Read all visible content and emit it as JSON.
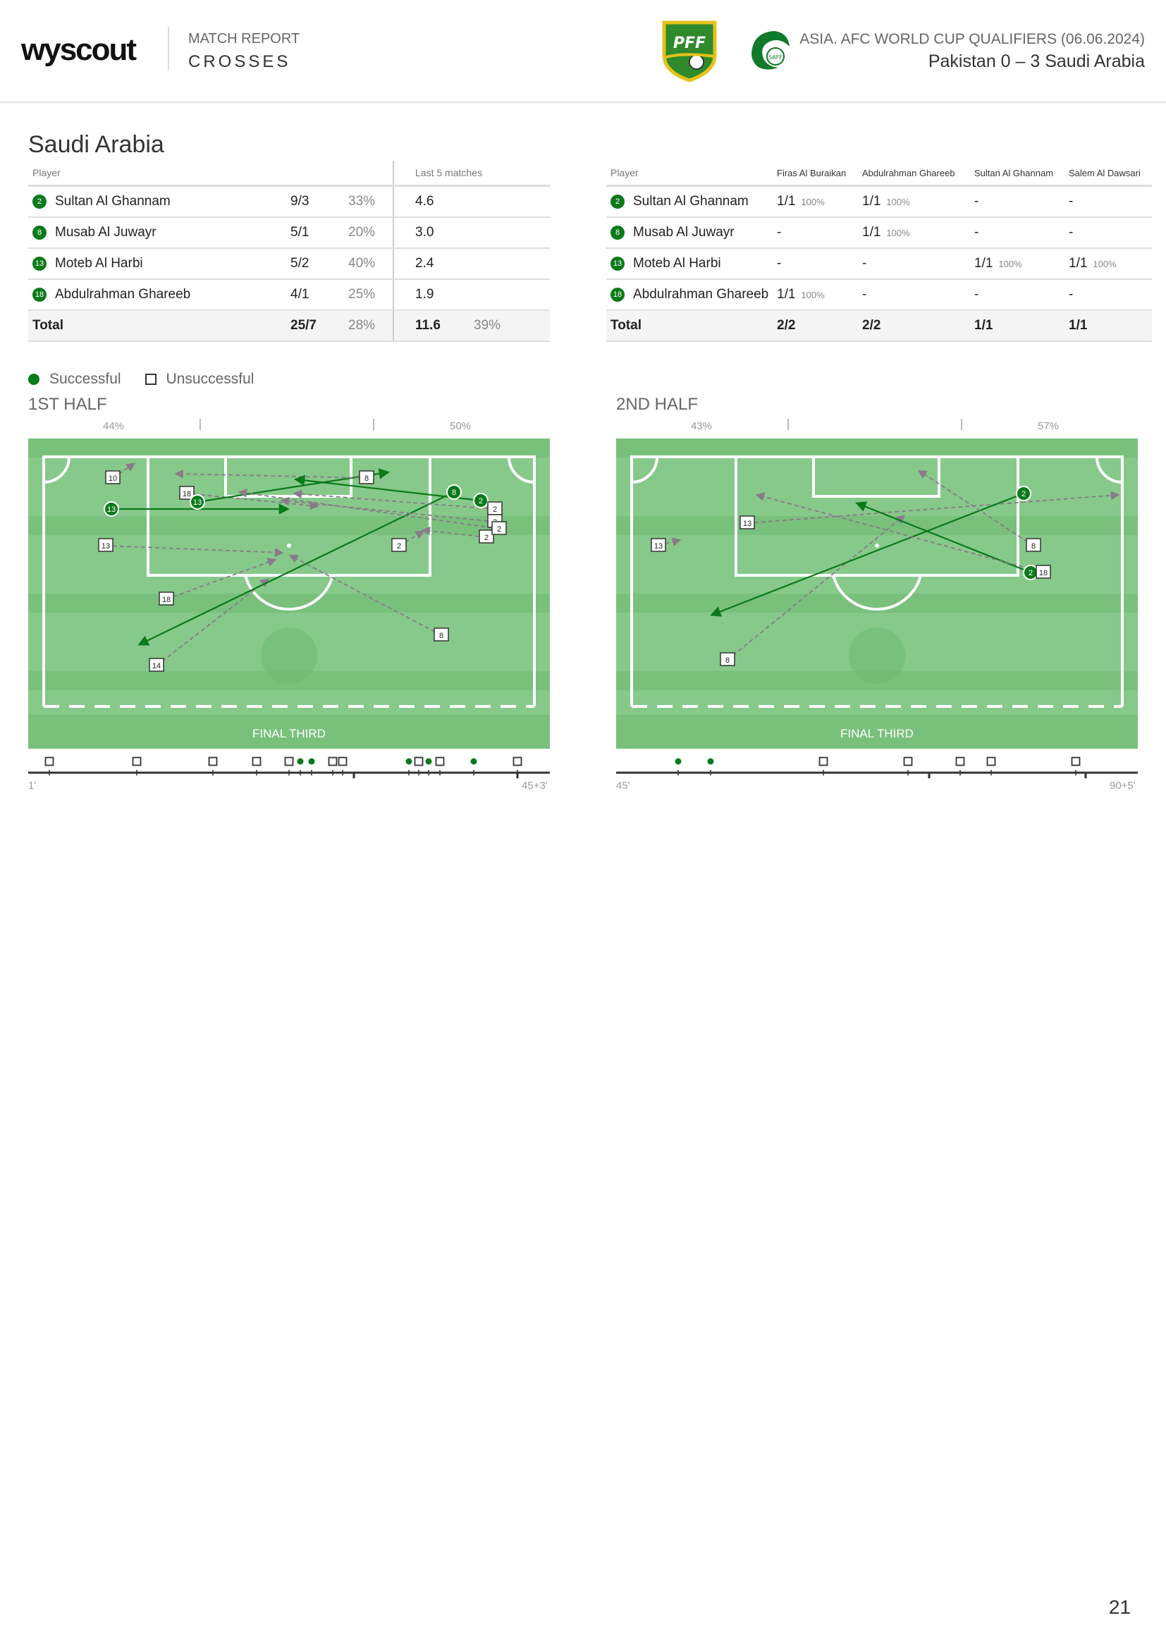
{
  "header": {
    "logo": "wyscout",
    "report_label": "MATCH REPORT",
    "report_title": "CROSSES",
    "competition": "ASIA. AFC WORLD CUP QUALIFIERS (06.06.2024)",
    "match": "Pakistan 0 – 3 Saudi Arabia",
    "home_crest": "PFF",
    "away_crest": "SAFF"
  },
  "team": "Saudi Arabia",
  "table1": {
    "col_player": "Player",
    "col_last5": "Last 5 matches",
    "rows": [
      {
        "num": "2",
        "name": "Sultan Al Ghannam",
        "crosses": "9/3",
        "pct": "33%",
        "last5": "4.6",
        "last5pct": ""
      },
      {
        "num": "8",
        "name": "Musab Al Juwayr",
        "crosses": "5/1",
        "pct": "20%",
        "last5": "3.0",
        "last5pct": ""
      },
      {
        "num": "13",
        "name": "Moteb Al Harbi",
        "crosses": "5/2",
        "pct": "40%",
        "last5": "2.4",
        "last5pct": ""
      },
      {
        "num": "18",
        "name": "Abdulrahman Ghareeb",
        "crosses": "4/1",
        "pct": "25%",
        "last5": "1.9",
        "last5pct": ""
      }
    ],
    "total": {
      "label": "Total",
      "crosses": "25/7",
      "pct": "28%",
      "last5": "11.6",
      "last5pct": "39%"
    }
  },
  "table2": {
    "col_player": "Player",
    "cols": [
      "Firas Al Buraikan",
      "Abdulrahman Ghareeb",
      "Sultan Al Ghannam",
      "Salem Al Dawsari"
    ],
    "rows": [
      {
        "num": "2",
        "name": "Sultan Al Ghannam",
        "cells": [
          [
            "1/1",
            "100%"
          ],
          [
            "1/1",
            "100%"
          ],
          [
            "-",
            ""
          ],
          [
            "-",
            ""
          ]
        ]
      },
      {
        "num": "8",
        "name": "Musab Al Juwayr",
        "cells": [
          [
            "-",
            ""
          ],
          [
            "1/1",
            "100%"
          ],
          [
            "-",
            ""
          ],
          [
            "-",
            ""
          ]
        ]
      },
      {
        "num": "13",
        "name": "Moteb Al Harbi",
        "cells": [
          [
            "-",
            ""
          ],
          [
            "-",
            ""
          ],
          [
            "1/1",
            "100%"
          ],
          [
            "1/1",
            "100%"
          ]
        ]
      },
      {
        "num": "18",
        "name": "Abdulrahman Ghareeb",
        "cells": [
          [
            "1/1",
            "100%"
          ],
          [
            "-",
            ""
          ],
          [
            "-",
            ""
          ],
          [
            "-",
            ""
          ]
        ]
      }
    ],
    "total": {
      "label": "Total",
      "cells": [
        "2/2",
        "2/2",
        "1/1",
        "1/1"
      ]
    }
  },
  "legend": {
    "successful": "Successful",
    "unsuccessful": "Unsuccessful"
  },
  "halves": [
    {
      "title": "1ST HALF",
      "pct_left": "44%",
      "pct_right": "50%",
      "final_third": "FINAL THIRD",
      "time_start": "1'",
      "time_end": "45+3'",
      "crosses": [
        {
          "n": "10",
          "ok": false
        },
        {
          "n": "18",
          "ok": false
        },
        {
          "n": "13",
          "ok": true
        },
        {
          "n": "13",
          "ok": true
        },
        {
          "n": "13",
          "ok": false
        },
        {
          "n": "18",
          "ok": false
        },
        {
          "n": "14",
          "ok": false
        },
        {
          "n": "8",
          "ok": false
        },
        {
          "n": "8",
          "ok": true
        },
        {
          "n": "8",
          "ok": false
        },
        {
          "n": "2",
          "ok": true
        },
        {
          "n": "2",
          "ok": false
        },
        {
          "n": "2",
          "ok": false
        },
        {
          "n": "2",
          "ok": false
        },
        {
          "n": "2",
          "ok": false
        },
        {
          "n": "2",
          "ok": false
        }
      ],
      "timeline": [
        {
          "ok": false
        },
        {
          "ok": false
        },
        {
          "ok": false
        },
        {
          "ok": false
        },
        {
          "ok": false
        },
        {
          "ok": true
        },
        {
          "ok": true
        },
        {
          "ok": false
        },
        {
          "ok": false
        },
        {
          "ok": true
        },
        {
          "ok": false
        },
        {
          "ok": true
        },
        {
          "ok": false
        },
        {
          "ok": true
        },
        {
          "ok": false
        }
      ]
    },
    {
      "title": "2ND HALF",
      "pct_left": "43%",
      "pct_right": "57%",
      "final_third": "FINAL THIRD",
      "time_start": "45'",
      "time_end": "90+5'",
      "crosses": [
        {
          "n": "13",
          "ok": false
        },
        {
          "n": "13",
          "ok": false
        },
        {
          "n": "8",
          "ok": false
        },
        {
          "n": "2",
          "ok": true
        },
        {
          "n": "2",
          "ok": true
        },
        {
          "n": "8",
          "ok": false
        },
        {
          "n": "18",
          "ok": false
        }
      ],
      "timeline": [
        {
          "ok": true
        },
        {
          "ok": true
        },
        {
          "ok": false
        },
        {
          "ok": false
        },
        {
          "ok": false
        },
        {
          "ok": false
        },
        {
          "ok": false
        }
      ]
    }
  ],
  "page_number": "21",
  "colors": {
    "accent": "#0b7a1a",
    "pitch_light": "#86c98a",
    "pitch_dark": "#79c07d",
    "fail": "#8a7a8a"
  }
}
